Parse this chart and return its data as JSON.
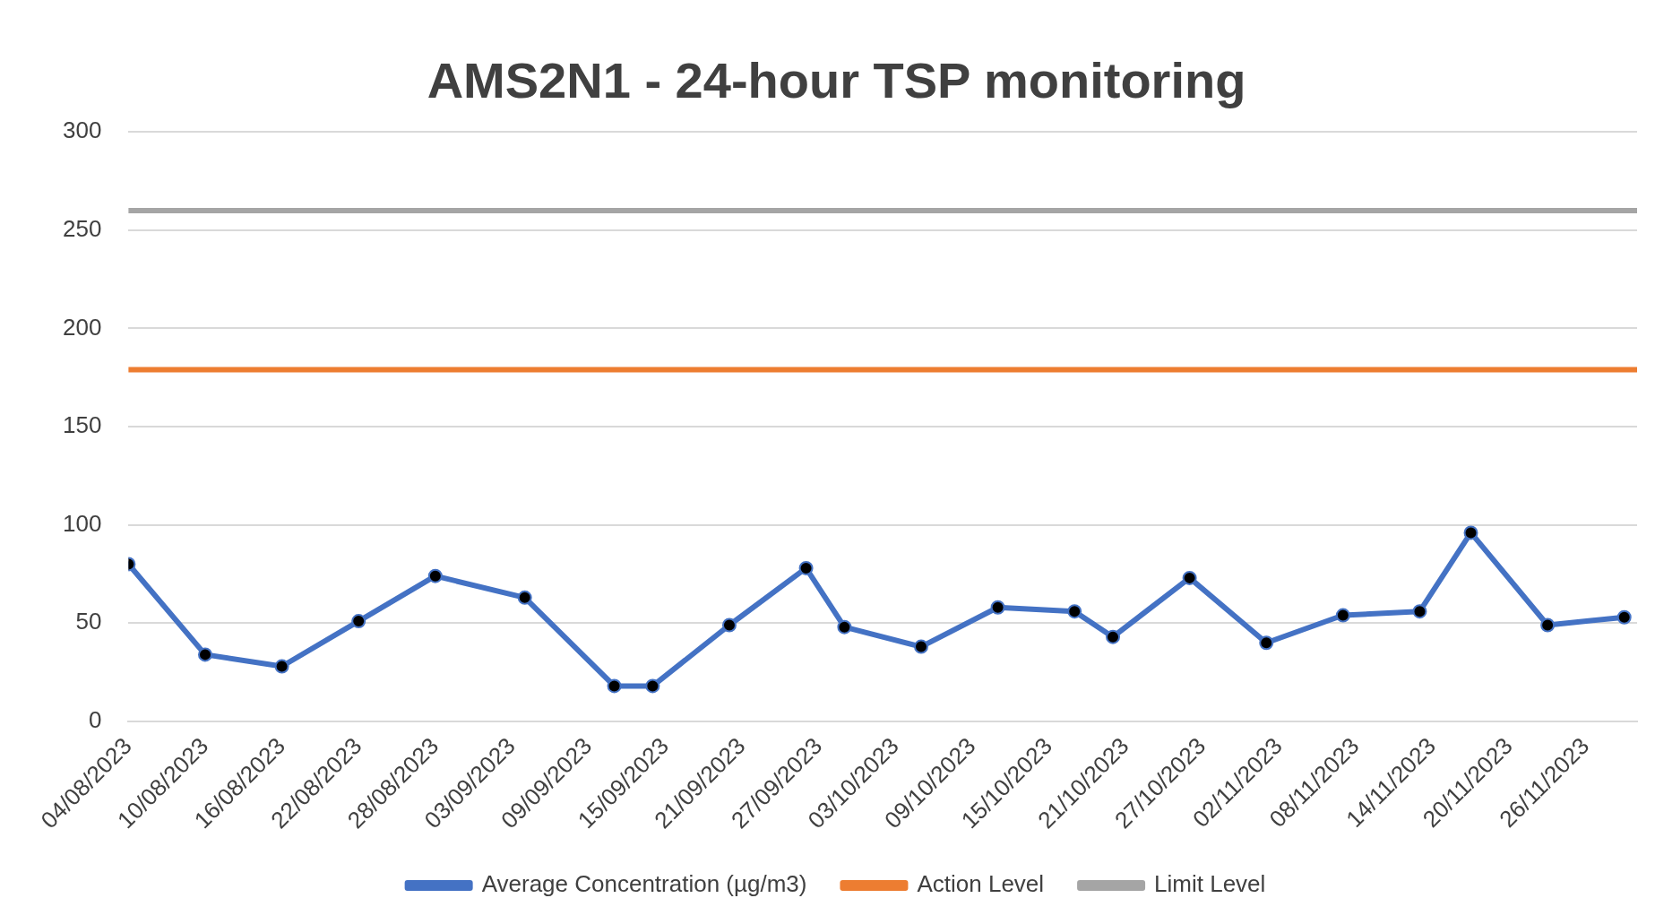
{
  "chart_data": {
    "type": "line",
    "title": "AMS2N1 - 24-hour TSP monitoring",
    "x": [
      "2023-08-04",
      "2023-08-10",
      "2023-08-16",
      "2023-08-22",
      "2023-08-28",
      "2023-09-04",
      "2023-09-11",
      "2023-09-14",
      "2023-09-20",
      "2023-09-26",
      "2023-09-29",
      "2023-10-05",
      "2023-10-11",
      "2023-10-17",
      "2023-10-20",
      "2023-10-26",
      "2023-11-01",
      "2023-11-07",
      "2023-11-13",
      "2023-11-17",
      "2023-11-23",
      "2023-11-29"
    ],
    "series": [
      {
        "name": "Average Concentration (µg/m3)",
        "color": "#4472c4",
        "marker": "circle",
        "values": [
          80,
          34,
          28,
          51,
          74,
          63,
          18,
          18,
          49,
          78,
          48,
          38,
          58,
          56,
          43,
          73,
          40,
          54,
          56,
          96,
          49,
          53
        ]
      },
      {
        "name": "Action Level",
        "color": "#ed7d31",
        "marker": "none",
        "x": [
          "2023-08-04",
          "2023-11-30"
        ],
        "values": [
          179,
          179
        ]
      },
      {
        "name": "Limit Level",
        "color": "#a5a5a5",
        "marker": "none",
        "x": [
          "2023-08-04",
          "2023-11-30"
        ],
        "values": [
          260,
          260
        ]
      }
    ],
    "xlim": [
      "2023-08-04",
      "2023-11-30"
    ],
    "xticks": [
      {
        "value": "2023-08-04",
        "label": "04/08/2023"
      },
      {
        "value": "2023-08-10",
        "label": "10/08/2023"
      },
      {
        "value": "2023-08-16",
        "label": "16/08/2023"
      },
      {
        "value": "2023-08-22",
        "label": "22/08/2023"
      },
      {
        "value": "2023-08-28",
        "label": "28/08/2023"
      },
      {
        "value": "2023-09-03",
        "label": "03/09/2023"
      },
      {
        "value": "2023-09-09",
        "label": "09/09/2023"
      },
      {
        "value": "2023-09-15",
        "label": "15/09/2023"
      },
      {
        "value": "2023-09-21",
        "label": "21/09/2023"
      },
      {
        "value": "2023-09-27",
        "label": "27/09/2023"
      },
      {
        "value": "2023-10-03",
        "label": "03/10/2023"
      },
      {
        "value": "2023-10-09",
        "label": "09/10/2023"
      },
      {
        "value": "2023-10-15",
        "label": "15/10/2023"
      },
      {
        "value": "2023-10-21",
        "label": "21/10/2023"
      },
      {
        "value": "2023-10-27",
        "label": "27/10/2023"
      },
      {
        "value": "2023-11-02",
        "label": "02/11/2023"
      },
      {
        "value": "2023-11-08",
        "label": "08/11/2023"
      },
      {
        "value": "2023-11-14",
        "label": "14/11/2023"
      },
      {
        "value": "2023-11-20",
        "label": "20/11/2023"
      },
      {
        "value": "2023-11-26",
        "label": "26/11/2023"
      }
    ],
    "ylim": [
      0,
      300
    ],
    "yticks": [
      0,
      50,
      100,
      150,
      200,
      250,
      300
    ],
    "grid": "y",
    "legend": "bottom"
  }
}
